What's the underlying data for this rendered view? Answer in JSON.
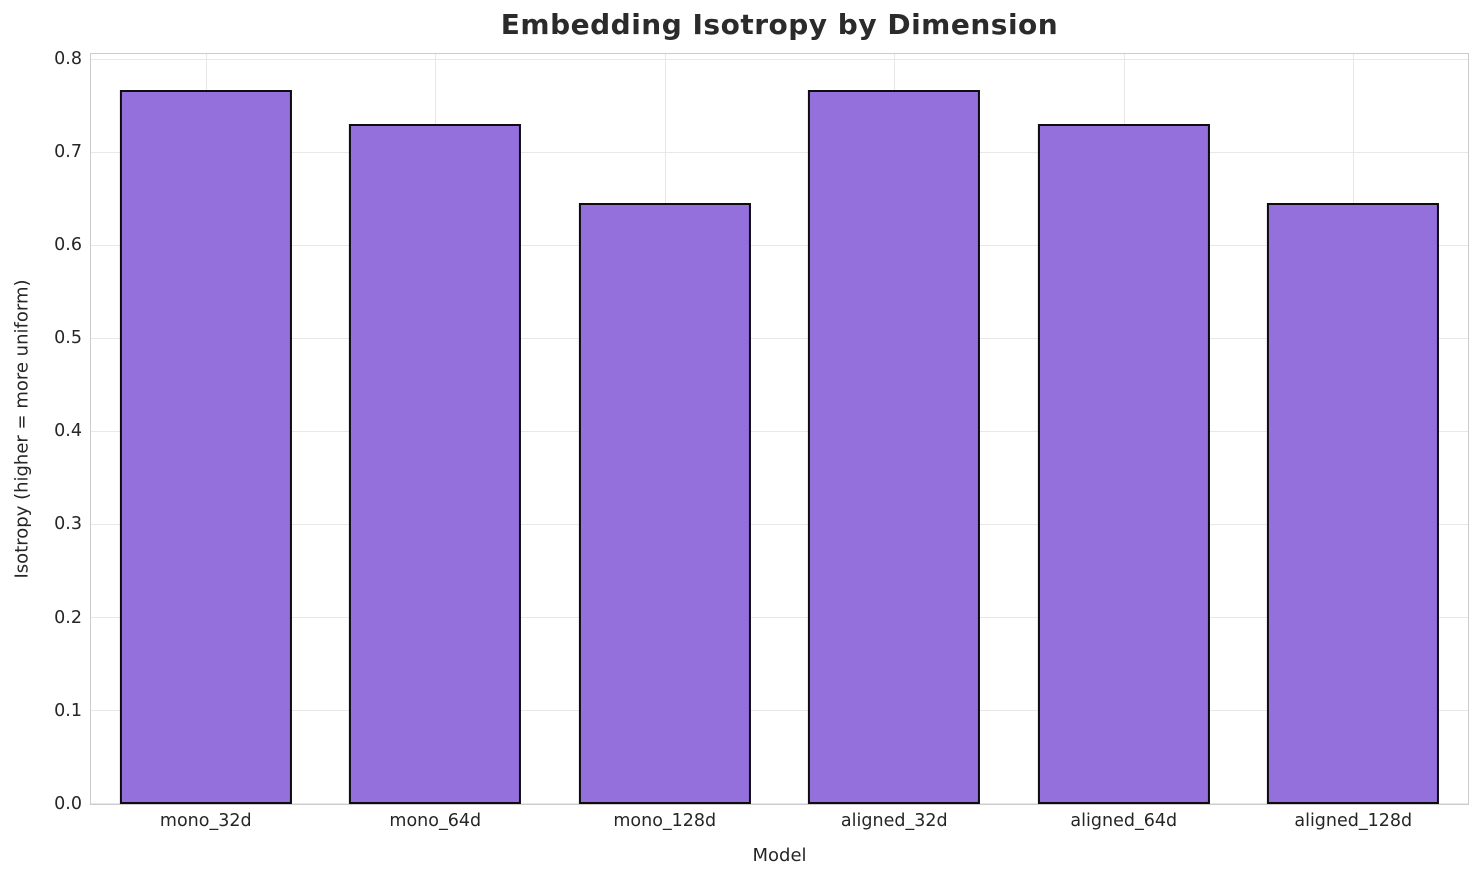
{
  "chart_data": {
    "type": "bar",
    "title": "Embedding Isotropy by Dimension",
    "xlabel": "Model",
    "ylabel": "Isotropy (higher = more uniform)",
    "categories": [
      "mono_32d",
      "mono_64d",
      "mono_128d",
      "aligned_32d",
      "aligned_64d",
      "aligned_128d"
    ],
    "values": [
      0.768,
      0.731,
      0.646,
      0.768,
      0.731,
      0.646
    ],
    "ylim": [
      0,
      0.8064
    ],
    "ytick_labels": [
      "0.0",
      "0.1",
      "0.2",
      "0.3",
      "0.4",
      "0.5",
      "0.6",
      "0.7",
      "0.8"
    ],
    "grid": true,
    "legend": null,
    "colors": {
      "bar_fill": "#9370DB",
      "bar_edge": "#0d0d0d",
      "grid_line": "#e8e8e8",
      "spine": "#cccccc",
      "text": "#262626",
      "title_text": "#2b2b2b",
      "background": "#ffffff"
    }
  }
}
